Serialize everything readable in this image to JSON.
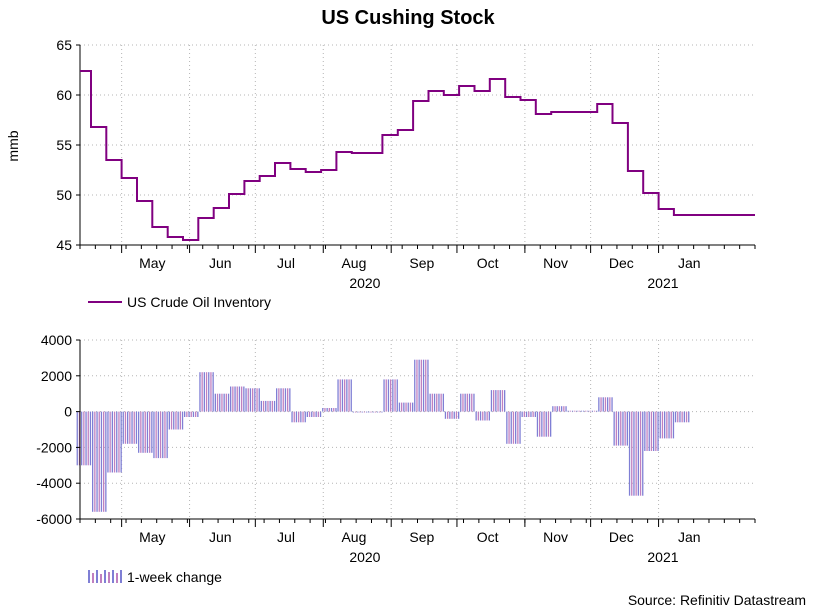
{
  "title": "US Cushing Stock",
  "source": "Source: Refinitiv Datastream",
  "colors": {
    "line": "#800080",
    "bar_a": "#7f7fd5",
    "bar_b": "#c080c0",
    "grid": "#b5b5b5",
    "axis": "#000000"
  },
  "chart_data": [
    {
      "type": "line",
      "title": "US Cushing Stock",
      "ylabel": "mmb",
      "xlabel": "",
      "ylim": [
        45,
        65
      ],
      "yticks": [
        45,
        50,
        55,
        60,
        65
      ],
      "x_range": [
        "2020-04-12",
        "2021-02-14"
      ],
      "grid": true,
      "legend": {
        "label": "US Crude Oil Inventory",
        "placement": "below"
      },
      "month_ticks": [
        {
          "label": "May",
          "date": "2020-05-01"
        },
        {
          "label": "Jun",
          "date": "2020-06-01"
        },
        {
          "label": "Jul",
          "date": "2020-07-01"
        },
        {
          "label": "Aug",
          "date": "2020-08-01"
        },
        {
          "label": "Sep",
          "date": "2020-09-01"
        },
        {
          "label": "Oct",
          "date": "2020-10-01"
        },
        {
          "label": "Nov",
          "date": "2020-11-01"
        },
        {
          "label": "Dec",
          "date": "2020-12-01"
        },
        {
          "label": "Jan",
          "date": "2021-01-01"
        }
      ],
      "year_labels": [
        {
          "label": "2020",
          "date": "2020-08-20"
        },
        {
          "label": "2021",
          "date": "2021-01-03"
        }
      ],
      "dates": [
        "2020-04-10",
        "2020-04-17",
        "2020-04-24",
        "2020-05-01",
        "2020-05-08",
        "2020-05-15",
        "2020-05-22",
        "2020-05-29",
        "2020-06-05",
        "2020-06-12",
        "2020-06-19",
        "2020-06-26",
        "2020-07-03",
        "2020-07-10",
        "2020-07-17",
        "2020-07-24",
        "2020-07-31",
        "2020-08-07",
        "2020-08-14",
        "2020-08-21",
        "2020-08-28",
        "2020-09-04",
        "2020-09-11",
        "2020-09-18",
        "2020-09-25",
        "2020-10-02",
        "2020-10-09",
        "2020-10-16",
        "2020-10-23",
        "2020-10-30",
        "2020-11-06",
        "2020-11-13",
        "2020-11-20",
        "2020-11-27",
        "2020-12-04",
        "2020-12-11",
        "2020-12-18",
        "2020-12-25",
        "2021-01-01",
        "2021-01-08",
        "2021-01-15",
        "2021-01-22",
        "2021-01-29",
        "2021-02-05",
        "2021-02-12"
      ],
      "values": [
        62.4,
        56.8,
        53.5,
        51.7,
        49.4,
        46.8,
        45.8,
        45.5,
        47.7,
        48.7,
        50.1,
        51.4,
        51.9,
        53.2,
        52.6,
        52.3,
        52.5,
        54.3,
        54.2,
        54.2,
        56.0,
        56.5,
        59.4,
        60.4,
        60.0,
        60.9,
        60.4,
        61.6,
        59.8,
        59.5,
        58.1,
        58.3,
        58.3,
        58.3,
        59.1,
        57.2,
        52.4,
        50.2,
        48.6,
        48.0,
        48.0,
        48.0,
        48.0,
        48.0,
        48.0
      ],
      "series_name": "US Crude Oil Inventory"
    },
    {
      "type": "bar",
      "ylim": [
        -6000,
        4000
      ],
      "yticks": [
        -6000,
        -4000,
        -2000,
        0,
        2000,
        4000
      ],
      "grid": true,
      "legend": {
        "label": "1-week change",
        "placement": "below"
      },
      "series_name": "1-week change",
      "dates": [
        "2020-04-10",
        "2020-04-17",
        "2020-04-24",
        "2020-05-01",
        "2020-05-08",
        "2020-05-15",
        "2020-05-22",
        "2020-05-29",
        "2020-06-05",
        "2020-06-12",
        "2020-06-19",
        "2020-06-26",
        "2020-07-03",
        "2020-07-10",
        "2020-07-17",
        "2020-07-24",
        "2020-07-31",
        "2020-08-07",
        "2020-08-14",
        "2020-08-21",
        "2020-08-28",
        "2020-09-04",
        "2020-09-11",
        "2020-09-18",
        "2020-09-25",
        "2020-10-02",
        "2020-10-09",
        "2020-10-16",
        "2020-10-23",
        "2020-10-30",
        "2020-11-06",
        "2020-11-13",
        "2020-11-20",
        "2020-11-27",
        "2020-12-04",
        "2020-12-11",
        "2020-12-18",
        "2020-12-25",
        "2021-01-01",
        "2021-01-08",
        "2021-01-15",
        "2021-01-22",
        "2021-01-29",
        "2021-02-05"
      ],
      "values": [
        -3000,
        -5600,
        -3400,
        -1800,
        -2300,
        -2600,
        -1000,
        -300,
        2200,
        1000,
        1400,
        1300,
        600,
        1300,
        -600,
        -300,
        200,
        1800,
        -50,
        -50,
        1800,
        500,
        2900,
        1000,
        -400,
        1000,
        -500,
        1200,
        -1800,
        -300,
        -1400,
        300,
        50,
        50,
        800,
        -1900,
        -4700,
        -2200,
        -1500,
        -600,
        0,
        0,
        0,
        0
      ],
      "month_ticks": [
        {
          "label": "May",
          "date": "2020-05-01"
        },
        {
          "label": "Jun",
          "date": "2020-06-01"
        },
        {
          "label": "Jul",
          "date": "2020-07-01"
        },
        {
          "label": "Aug",
          "date": "2020-08-01"
        },
        {
          "label": "Sep",
          "date": "2020-09-01"
        },
        {
          "label": "Oct",
          "date": "2020-10-01"
        },
        {
          "label": "Nov",
          "date": "2020-11-01"
        },
        {
          "label": "Dec",
          "date": "2020-12-01"
        },
        {
          "label": "Jan",
          "date": "2021-01-01"
        }
      ],
      "year_labels": [
        {
          "label": "2020",
          "date": "2020-08-20"
        },
        {
          "label": "2021",
          "date": "2021-01-03"
        }
      ]
    }
  ]
}
